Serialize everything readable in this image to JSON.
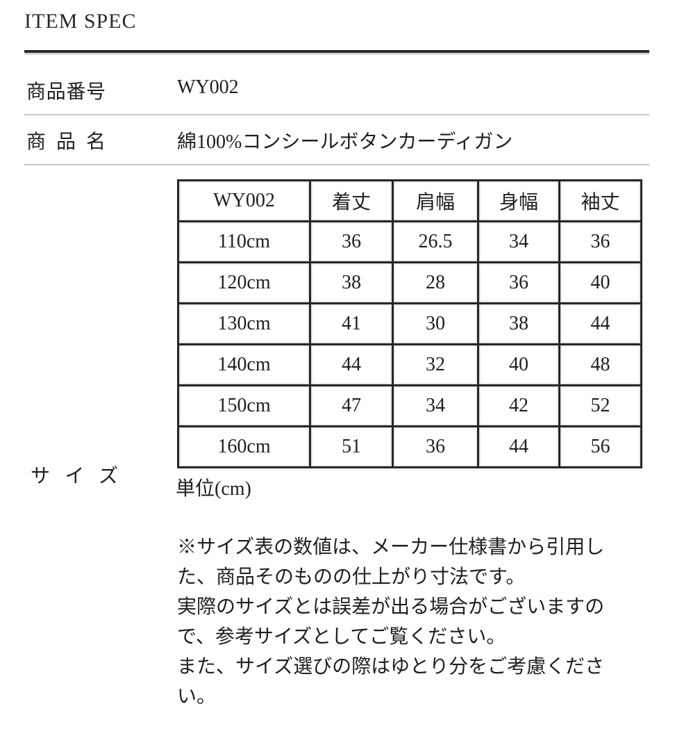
{
  "page": {
    "title": "ITEM SPEC"
  },
  "spec_rows": [
    {
      "label": "商品番号",
      "value": "WY002"
    },
    {
      "label": "商品名",
      "value": "綿100%コンシールボタンカーディガン"
    }
  ],
  "size_section": {
    "label": "サイズ",
    "unit_note": "単位(cm)",
    "table": {
      "header": [
        "WY002",
        "着丈",
        "肩幅",
        "身幅",
        "袖丈"
      ],
      "rows": [
        [
          "110cm",
          "36",
          "26.5",
          "34",
          "36"
        ],
        [
          "120cm",
          "38",
          "28",
          "36",
          "40"
        ],
        [
          "130cm",
          "41",
          "30",
          "38",
          "44"
        ],
        [
          "140cm",
          "44",
          "32",
          "40",
          "48"
        ],
        [
          "150cm",
          "47",
          "34",
          "42",
          "52"
        ],
        [
          "160cm",
          "51",
          "36",
          "44",
          "56"
        ]
      ]
    },
    "notes_lines": [
      "※サイズ表の数値は、メーカー仕様書から引用し",
      "た、商品そのものの仕上がり寸法です。",
      "実際のサイズとは誤差が出る場合がございますの",
      "で、参考サイズとしてご覧ください。",
      "また、サイズ選びの際はゆとり分をご考慮くださ",
      "い。"
    ]
  },
  "colors": {
    "text": "#1f1f1f",
    "rule_dark": "#2b2b2b",
    "rule_light": "#d8d8d8",
    "divider": "#c8c8c8",
    "table_border": "#262626",
    "background": "#ffffff"
  }
}
